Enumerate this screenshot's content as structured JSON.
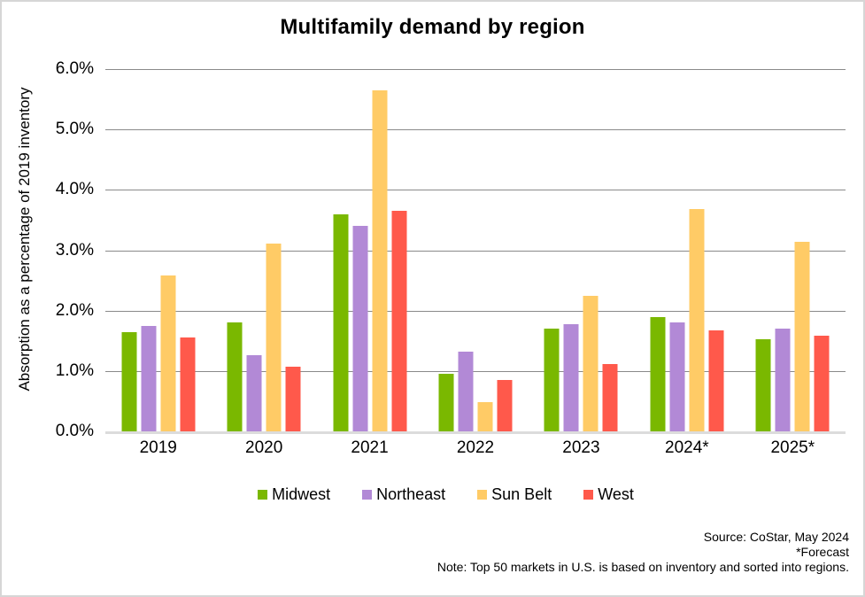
{
  "chart_data": {
    "type": "bar",
    "title": "Multifamily demand by region",
    "ylabel": "Absorption as a percentage of 2019 inventory",
    "xlabel": "",
    "categories": [
      "2019",
      "2020",
      "2021",
      "2022",
      "2023",
      "2024*",
      "2025*"
    ],
    "series": [
      {
        "name": "Midwest",
        "color": "#7ab800",
        "values": [
          1.65,
          1.8,
          3.6,
          0.95,
          1.7,
          1.9,
          1.53
        ]
      },
      {
        "name": "Northeast",
        "color": "#b289d6",
        "values": [
          1.75,
          1.26,
          3.4,
          1.32,
          1.78,
          1.81,
          1.7
        ]
      },
      {
        "name": "Sun Belt",
        "color": "#ffcb66",
        "values": [
          2.58,
          3.11,
          5.65,
          0.48,
          2.25,
          3.69,
          3.14
        ]
      },
      {
        "name": "West",
        "color": "#ff594b",
        "values": [
          1.55,
          1.07,
          3.66,
          0.85,
          1.12,
          1.67,
          1.58
        ]
      }
    ],
    "ylim": [
      0,
      6
    ],
    "ytick_step": 1,
    "yticks": [
      "0.0%",
      "1.0%",
      "2.0%",
      "3.0%",
      "4.0%",
      "5.0%",
      "6.0%"
    ],
    "grid": true,
    "legend_position": "bottom"
  },
  "footer": {
    "source": "Source: CoStar, May 2024",
    "forecast": "*Forecast",
    "note": "Note: Top 50 markets in U.S. is based on inventory and sorted into regions."
  },
  "colors": {
    "gridline": "#8a8a8a",
    "baseline": "#dcdcdc",
    "border": "#d6d6d6",
    "background": "#ffffff",
    "text": "#000000"
  }
}
